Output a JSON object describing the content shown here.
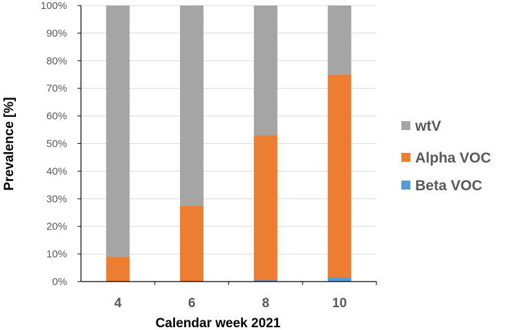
{
  "chart_data": {
    "type": "bar",
    "stacked": true,
    "percent_stacked": true,
    "categories": [
      "4",
      "6",
      "8",
      "10"
    ],
    "series": [
      {
        "name": "Beta VOC",
        "color": "#5b9bd5",
        "values": [
          0,
          0,
          0.5,
          1.5
        ]
      },
      {
        "name": "Alpha VOC",
        "color": "#ed7d31",
        "values": [
          9,
          27.5,
          52.5,
          73.5
        ]
      },
      {
        "name": "wtV",
        "color": "#a5a5a5",
        "values": [
          91,
          72.5,
          47,
          25
        ]
      }
    ],
    "legend_order": [
      "wtV",
      "Alpha VOC",
      "Beta VOC"
    ],
    "xlabel": "Calendar week 2021",
    "ylabel": "Prevalence [%]",
    "ylim": [
      0,
      100
    ],
    "yticks": [
      0,
      10,
      20,
      30,
      40,
      50,
      60,
      70,
      80,
      90,
      100
    ],
    "ytick_suffix": "%",
    "grid": true,
    "legend_position": "right"
  }
}
